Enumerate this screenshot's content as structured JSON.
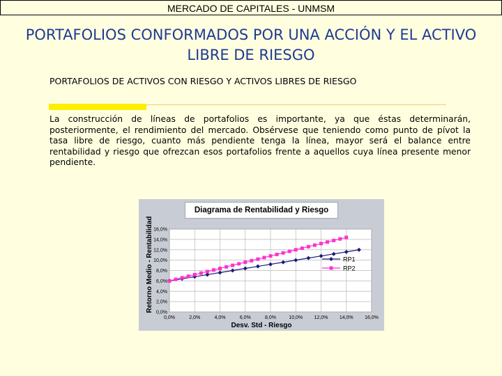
{
  "header": "MERCADO DE CAPITALES - UNMSM",
  "title": "PORTAFOLIOS CONFORMADOS POR UNA ACCIÓN Y EL ACTIVO LIBRE DE RIESGO",
  "subtitle": "PORTAFOLIOS DE ACTIVOS CON RIESGO Y ACTIVOS LIBRES DE RIESGO",
  "body": "La construcción de líneas de portafolios es importante, ya que éstas determinarán, posteriormente, el rendimiento del mercado. Obsérvese que teniendo como punto de pívot la tasa libre de riesgo, cuanto más pendiente tenga la línea, mayor será el balance entre rentabilidad y riesgo que ofrezcan esos portafolios frente a aquellos cuya línea presente menor pendiente.",
  "chart_data": {
    "type": "line",
    "title": "Diagrama de Rentabilidad y Riesgo",
    "xlabel": "Desv. Std - Riesgo",
    "ylabel": "Retorno Medio - Rentabilidad",
    "xlim": [
      0,
      16
    ],
    "ylim": [
      0,
      16
    ],
    "x_ticks": [
      "0,0%",
      "2,0%",
      "4,0%",
      "6,0%",
      "8,0%",
      "10,0%",
      "12,0%",
      "14,0%",
      "16,0%"
    ],
    "y_ticks": [
      "0,0%",
      "2,0%",
      "4,0%",
      "6,0%",
      "8,0%",
      "10,0%",
      "12,0%",
      "14,0%",
      "16,0%"
    ],
    "grid": true,
    "legend": "right",
    "series": [
      {
        "name": "RP1",
        "color": "#1a1a7a",
        "x": [
          0,
          1,
          2,
          3,
          4,
          5,
          6,
          7,
          8,
          9,
          10,
          11,
          12,
          13,
          14,
          15
        ],
        "y": [
          6.0,
          6.4,
          6.8,
          7.2,
          7.6,
          8.0,
          8.4,
          8.8,
          9.2,
          9.6,
          10.0,
          10.4,
          10.8,
          11.2,
          11.6,
          12.0
        ]
      },
      {
        "name": "RP2",
        "color": "#ff33cc",
        "x": [
          0,
          0.5,
          1,
          1.5,
          2,
          2.5,
          3,
          3.5,
          4,
          4.5,
          5,
          5.5,
          6,
          6.5,
          7,
          7.5,
          8,
          8.5,
          9,
          9.5,
          10,
          10.5,
          11,
          11.5,
          12,
          12.5,
          13,
          13.5,
          14
        ],
        "y": [
          6.0,
          6.3,
          6.6,
          6.9,
          7.2,
          7.5,
          7.8,
          8.1,
          8.4,
          8.7,
          9.0,
          9.3,
          9.6,
          9.9,
          10.2,
          10.5,
          10.8,
          11.1,
          11.4,
          11.7,
          12.0,
          12.3,
          12.6,
          12.9,
          13.2,
          13.5,
          13.8,
          14.1,
          14.4
        ]
      }
    ]
  }
}
